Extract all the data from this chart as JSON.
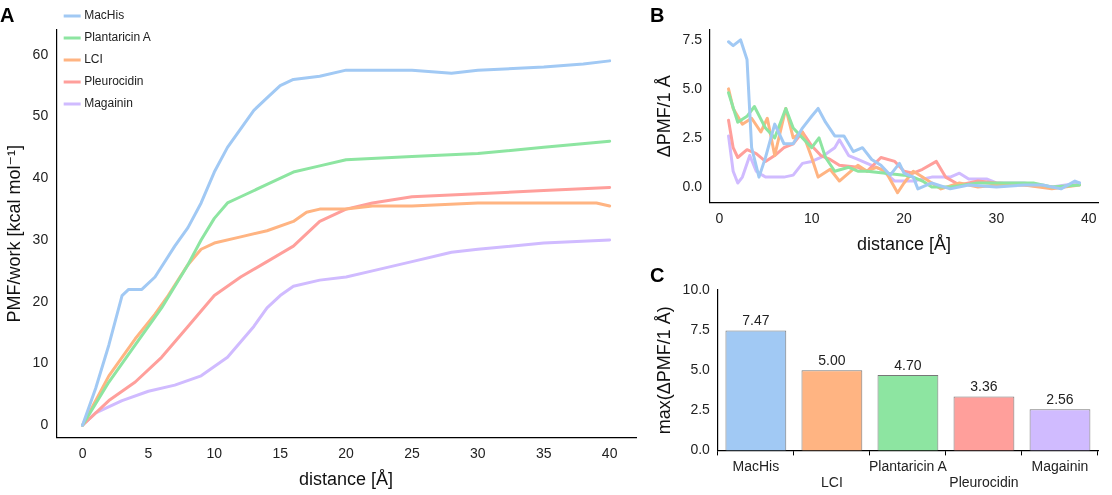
{
  "chart_data": [
    {
      "type": "line",
      "title": "A",
      "xlabel": "distance [Å]",
      "ylabel": "PMF/work [kcal mol⁻¹]",
      "xlim": [
        -2,
        42
      ],
      "ylim": [
        -2,
        64
      ],
      "xticks": [
        0,
        5,
        10,
        15,
        20,
        25,
        30,
        35,
        40
      ],
      "yticks": [
        0,
        10,
        20,
        30,
        40,
        50,
        60
      ],
      "legend": "top left",
      "grid": false,
      "series": [
        {
          "name": "MacHis",
          "color": "#a1c9f4",
          "x": [
            0,
            1,
            2,
            3,
            3.5,
            4.5,
            5.5,
            7,
            8,
            9,
            10,
            11,
            12,
            13,
            14,
            15,
            16,
            18,
            20,
            22,
            25,
            28,
            30,
            35,
            38,
            40
          ],
          "values": [
            0,
            6,
            13,
            21,
            22,
            22,
            24,
            29,
            32,
            36,
            41,
            45,
            48,
            51,
            53,
            55,
            56,
            56.5,
            57.5,
            57.5,
            57.5,
            57,
            57.5,
            58,
            58.5,
            59
          ]
        },
        {
          "name": "Plantaricin A",
          "color": "#8de5a1",
          "x": [
            0,
            2,
            4,
            6,
            8,
            9,
            10,
            11,
            12,
            14,
            16,
            18,
            20,
            25,
            30,
            35,
            40
          ],
          "values": [
            0,
            7,
            13,
            19,
            26,
            30,
            33.5,
            36,
            37,
            39,
            41,
            42,
            43,
            43.5,
            44,
            45,
            46
          ]
        },
        {
          "name": "LCI",
          "color": "#ffb482",
          "x": [
            0,
            2,
            4,
            5.5,
            6.5,
            8,
            9,
            10,
            12,
            14,
            16,
            17,
            18,
            20,
            22,
            25,
            30,
            35,
            39,
            40
          ],
          "values": [
            0,
            8,
            14,
            18,
            21,
            26,
            28.5,
            29.5,
            30.5,
            31.5,
            33,
            34.5,
            35,
            35,
            35.5,
            35.5,
            36,
            36,
            36,
            35.5
          ]
        },
        {
          "name": "Pleurocidin",
          "color": "#ff9f9b",
          "x": [
            0,
            2,
            4,
            6,
            8,
            10,
            12,
            14,
            16,
            18,
            20,
            22,
            25,
            30,
            35,
            40
          ],
          "values": [
            0,
            4,
            7,
            11,
            16,
            21,
            24,
            26.5,
            29,
            33,
            35,
            36,
            37,
            37.5,
            38,
            38.5
          ]
        },
        {
          "name": "Magainin",
          "color": "#d0bbff",
          "x": [
            0,
            1,
            3,
            5,
            7,
            9,
            11,
            13,
            14,
            15,
            16,
            18,
            20,
            22,
            25,
            28,
            30,
            35,
            40
          ],
          "values": [
            0,
            2,
            4,
            5.5,
            6.5,
            8,
            11,
            16,
            19,
            21,
            22.5,
            23.5,
            24,
            25,
            26.5,
            28,
            28.5,
            29.5,
            30
          ]
        }
      ]
    },
    {
      "type": "line",
      "title": "B",
      "xlabel": "distance [Å]",
      "ylabel": "ΔPMF/1 Å",
      "xlim": [
        -1,
        41
      ],
      "ylim": [
        -0.8,
        8
      ],
      "xticks": [
        0,
        10,
        20,
        30,
        40
      ],
      "yticks": [
        {
          "value": 0,
          "label": "0.0"
        },
        {
          "value": 2.5,
          "label": "2.5"
        },
        {
          "value": 5,
          "label": "5.0"
        },
        {
          "value": 7.5,
          "label": "7.5"
        }
      ],
      "grid": false,
      "series": [
        {
          "color": "#a1c9f4",
          "x": [
            1,
            1.5,
            2.3,
            3,
            3.5,
            4.3,
            5,
            6,
            7,
            8,
            9,
            10,
            10.7,
            11.5,
            12.5,
            13.5,
            14.5,
            15.5,
            16.5,
            17.5,
            18.5,
            19.5,
            20,
            21,
            21.5,
            23,
            25,
            27,
            30,
            33,
            35,
            37,
            38.5,
            39
          ],
          "values": [
            7.4,
            7.2,
            7.5,
            6.5,
            2,
            0.5,
            1.5,
            3.2,
            2.2,
            2.2,
            3,
            3.6,
            4,
            3.3,
            2.6,
            2.6,
            1.8,
            2,
            1.4,
            1.1,
            0.6,
            1.2,
            0.7,
            0.5,
            -0.1,
            0.2,
            -0.1,
            0.1,
            0,
            0.1,
            0.1,
            -0.1,
            0.3,
            0.2
          ]
        },
        {
          "color": "#8de5a1",
          "x": [
            1,
            2,
            3,
            3.8,
            5,
            6,
            7.2,
            8,
            9,
            10,
            10.8,
            11.5,
            12.5,
            14,
            15,
            16,
            18,
            20,
            21,
            22,
            23,
            25,
            28,
            30,
            34,
            36,
            39
          ],
          "values": [
            4.8,
            3.3,
            3.6,
            4.1,
            3,
            2.5,
            4,
            3,
            2.5,
            2,
            2.5,
            1.5,
            0.8,
            1,
            0.8,
            0.8,
            0.7,
            0.6,
            0.5,
            0.3,
            0,
            0,
            0.2,
            0.2,
            0.2,
            0,
            0.1
          ]
        },
        {
          "color": "#ffb482",
          "x": [
            1,
            1.5,
            2.5,
            3.5,
            4.5,
            5.2,
            6,
            7.2,
            8,
            9,
            10,
            10.7,
            12,
            13,
            14,
            15,
            16,
            17,
            18,
            19.3,
            20,
            21,
            22,
            23,
            24,
            26,
            28,
            30,
            33,
            36,
            39
          ],
          "values": [
            5,
            4,
            3.2,
            3.5,
            2.8,
            3.5,
            1.6,
            4,
            2.5,
            2.8,
            1.5,
            0.5,
            0.9,
            0.3,
            0.7,
            1.1,
            0.8,
            1,
            0.8,
            -0.3,
            0.2,
            0.8,
            0.5,
            0.2,
            -0.1,
            0.2,
            0,
            0.1,
            0.1,
            -0.1,
            0.1
          ]
        },
        {
          "color": "#ff9f9b",
          "x": [
            1,
            1.5,
            2,
            3,
            4,
            5,
            6,
            7,
            8,
            9,
            10,
            11,
            12,
            13,
            15,
            16,
            17.5,
            19,
            20,
            21,
            22,
            23.5,
            24.5,
            26,
            28,
            30,
            33,
            36
          ],
          "values": [
            3.4,
            2,
            1.5,
            1.9,
            1.7,
            1.3,
            1.6,
            2,
            2.2,
            2.8,
            2.1,
            1.6,
            1.4,
            1.1,
            1,
            0.8,
            1.5,
            1.3,
            0.8,
            0.7,
            0.9,
            1.3,
            0.5,
            0.1,
            0.3,
            0.2,
            0.1,
            0
          ]
        },
        {
          "color": "#d0bbff",
          "x": [
            1,
            1.5,
            2,
            2.5,
            3.3,
            4,
            5,
            7,
            8,
            9,
            10,
            11,
            12.5,
            13,
            14,
            15,
            16,
            17.5,
            19,
            21,
            23,
            25,
            26,
            27,
            29,
            30,
            33,
            36,
            39
          ],
          "values": [
            2.6,
            0.8,
            0.2,
            0.5,
            1.6,
            0.8,
            0.5,
            0.5,
            0.6,
            1.2,
            1.3,
            1.5,
            2,
            2.4,
            1.6,
            1.4,
            1.2,
            0.9,
            0.3,
            0.3,
            0.5,
            0.5,
            0.7,
            0.4,
            0.4,
            0.2,
            0.2,
            0,
            0.2
          ]
        }
      ]
    },
    {
      "type": "bar",
      "title": "C",
      "ylabel": "max(ΔPMF/1 Å)",
      "categories": [
        "MacHis",
        "LCI",
        "Plantaricin A",
        "Pleurocidin",
        "Magainin"
      ],
      "values": [
        7.47,
        5,
        4.7,
        3.36,
        2.56
      ],
      "value_labels": [
        "7.47",
        "5.00",
        "4.70",
        "3.36",
        "2.56"
      ],
      "colors": [
        "#a1c9f4",
        "#ffb482",
        "#8de5a1",
        "#ff9f9b",
        "#d0bbff"
      ],
      "ylim": [
        0,
        10
      ],
      "yticks": [
        {
          "value": 0,
          "label": "0.0"
        },
        {
          "value": 2.5,
          "label": "2.5"
        },
        {
          "value": 5,
          "label": "5.0"
        },
        {
          "value": 7.5,
          "label": "7.5"
        },
        {
          "value": 10,
          "label": "10.0"
        }
      ],
      "grid": false
    }
  ]
}
